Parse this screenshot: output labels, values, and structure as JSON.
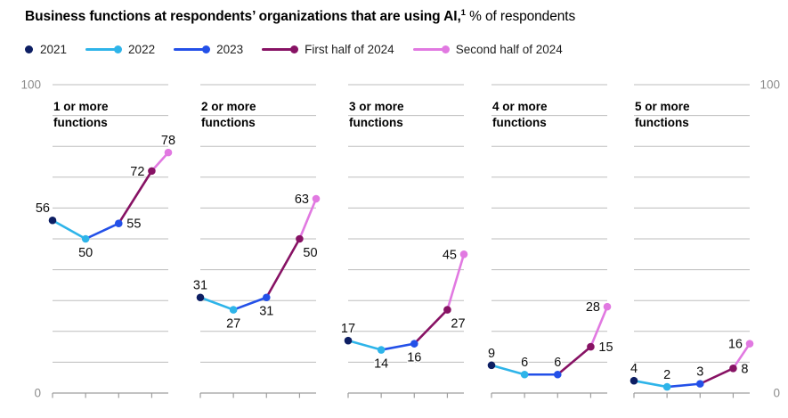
{
  "title": {
    "bold": "Business functions at respondents’ organizations that are using AI,",
    "superscript": "1",
    "regular": " % of respondents"
  },
  "legend": {
    "items": [
      {
        "label": "2021",
        "color": "#0d1e63",
        "marker": "dot"
      },
      {
        "label": "2022",
        "color": "#2eb4e9",
        "marker": "line-dot"
      },
      {
        "label": "2023",
        "color": "#2350e8",
        "marker": "line-dot"
      },
      {
        "label": "First half of 2024",
        "color": "#871264",
        "marker": "line-dot"
      },
      {
        "label": "Second half of 2024",
        "color": "#e179e1",
        "marker": "line-dot"
      }
    ]
  },
  "y_axis": {
    "top_label": "100",
    "bottom_label": "0"
  },
  "chart_data": {
    "type": "line",
    "title": "Business functions at respondents’ organizations that are using AI, % of respondents",
    "x_categories": [
      "2021",
      "2022",
      "2023",
      "First half of 2024",
      "Second half of 2024"
    ],
    "x_positions": [
      0,
      0.2857,
      0.5714,
      0.8571,
      1
    ],
    "x_tick_positions": [
      0,
      0.2857,
      0.5714,
      0.8571
    ],
    "ylim": [
      0,
      100
    ],
    "gridline_step": 10,
    "grid_on": true,
    "legend_position": "top-left",
    "grid_color": "#bdbdbd",
    "axis_color": "#9e9e9e",
    "axis_label_color": "#8c8c8c",
    "series_colors": [
      "#0d1e63",
      "#2eb4e9",
      "#2350e8",
      "#871264",
      "#e179e1"
    ],
    "panels": [
      {
        "title_lines": [
          "1 or more",
          "functions"
        ],
        "values": [
          56,
          50,
          55,
          72,
          78
        ],
        "label_pos": [
          "above-left",
          "below",
          "right",
          "left",
          "above"
        ]
      },
      {
        "title_lines": [
          "2 or more",
          "functions"
        ],
        "values": [
          31,
          27,
          31,
          50,
          63
        ],
        "label_pos": [
          "above",
          "below",
          "below",
          "below-right",
          "left"
        ]
      },
      {
        "title_lines": [
          "3 or more",
          "functions"
        ],
        "values": [
          17,
          14,
          16,
          27,
          45
        ],
        "label_pos": [
          "above",
          "below",
          "below",
          "below-right",
          "left"
        ]
      },
      {
        "title_lines": [
          "4 or more",
          "functions"
        ],
        "values": [
          9,
          6,
          6,
          15,
          28
        ],
        "label_pos": [
          "above",
          "above",
          "above",
          "right",
          "left"
        ]
      },
      {
        "title_lines": [
          "5 or more",
          "functions"
        ],
        "values": [
          4,
          2,
          3,
          8,
          16
        ],
        "label_pos": [
          "above",
          "above",
          "above",
          "right",
          "left"
        ]
      }
    ]
  }
}
